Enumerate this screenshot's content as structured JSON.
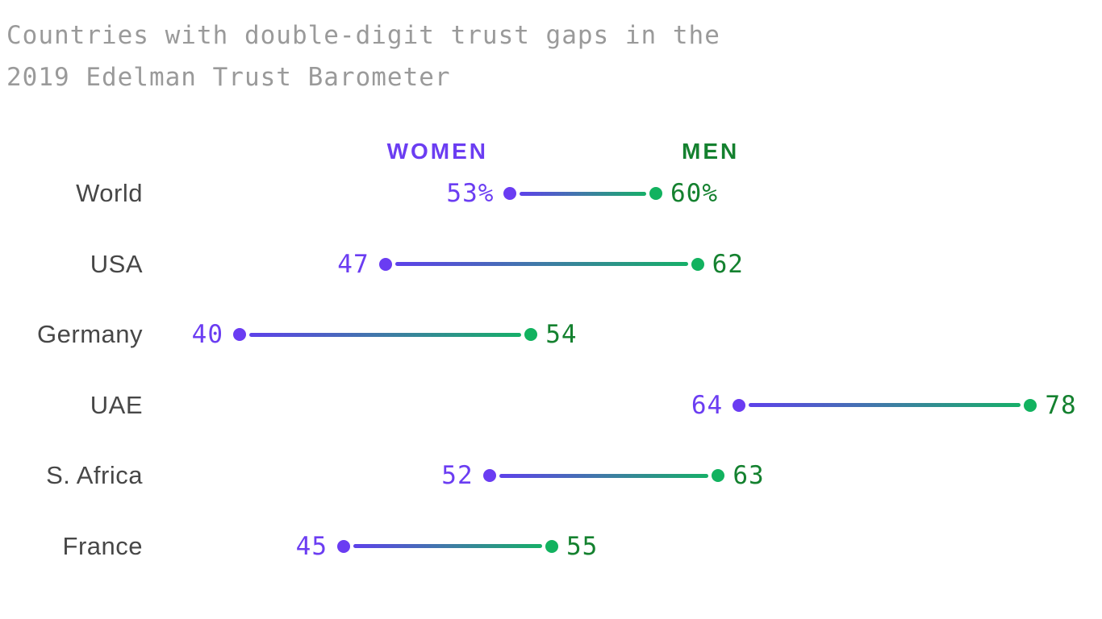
{
  "header": {
    "title_lines": [
      "Countries with double-digit trust gaps in the",
      "2019 Edelman Trust Barometer"
    ],
    "title_color": "#9a9a9a"
  },
  "legend": {
    "women_label": "WOMEN",
    "men_label": "MEN"
  },
  "colors": {
    "women_accent": "#6b3df2",
    "women_dot": "#6a3cf2",
    "men_text": "#14812f",
    "men_dot": "#12b25f",
    "line_gradient_start": "#5d41ea",
    "line_gradient_end": "#16af68",
    "country_label": "#474747",
    "background": "#ffffff"
  },
  "chart_data": {
    "type": "dumbbell",
    "title": "Countries with double-digit trust gaps in the 2019 Edelman Trust Barometer",
    "legend_position": "top",
    "grid": false,
    "xlim": [
      40,
      78
    ],
    "categories": [
      "World",
      "USA",
      "Germany",
      "UAE",
      "S. Africa",
      "France"
    ],
    "series": [
      {
        "name": "WOMEN",
        "values": [
          53,
          47,
          40,
          64,
          52,
          45
        ]
      },
      {
        "name": "MEN",
        "values": [
          60,
          62,
          54,
          78,
          63,
          55
        ]
      }
    ],
    "rows": [
      {
        "country": "World",
        "women": 53,
        "men": 60,
        "women_label": "53%",
        "men_label": "60%"
      },
      {
        "country": "USA",
        "women": 47,
        "men": 62,
        "women_label": "47",
        "men_label": "62"
      },
      {
        "country": "Germany",
        "women": 40,
        "men": 54,
        "women_label": "40",
        "men_label": "54"
      },
      {
        "country": "UAE",
        "women": 64,
        "men": 78,
        "women_label": "64",
        "men_label": "78"
      },
      {
        "country": "S. Africa",
        "women": 52,
        "men": 63,
        "women_label": "52",
        "men_label": "63"
      },
      {
        "country": "France",
        "women": 45,
        "men": 55,
        "women_label": "45",
        "men_label": "55"
      }
    ]
  }
}
